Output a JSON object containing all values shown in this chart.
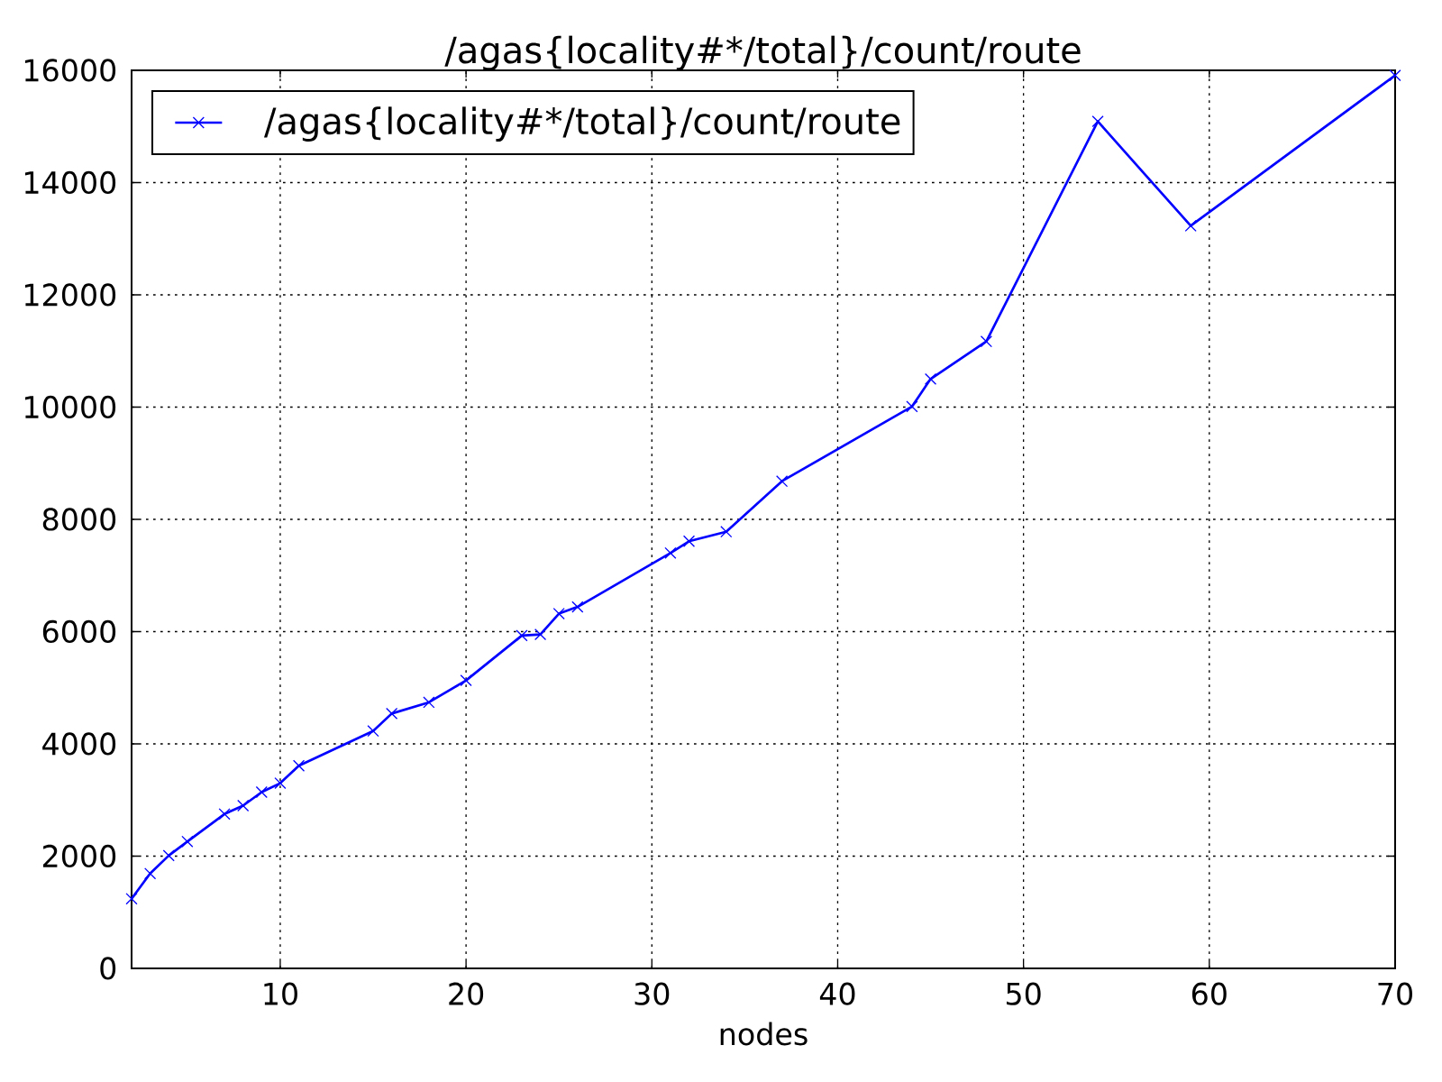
{
  "chart_data": {
    "type": "line",
    "title": "/agas{locality#*/total}/count/route",
    "xlabel": "nodes",
    "x": [
      2,
      3,
      4,
      5,
      7,
      8,
      9,
      10,
      11,
      15,
      16,
      18,
      20,
      23,
      24,
      25,
      26,
      31,
      32,
      34,
      37,
      44,
      45,
      48,
      54,
      59,
      70
    ],
    "series": [
      {
        "name": "/agas{locality#*/total}/count/route",
        "color": "#0000ff",
        "values": [
          1240,
          1690,
          2010,
          2260,
          2750,
          2900,
          3140,
          3300,
          3610,
          4230,
          4540,
          4740,
          5130,
          5930,
          5950,
          6320,
          6440,
          7400,
          7610,
          7780,
          8680,
          10010,
          10500,
          11170,
          15090,
          13230,
          15910
        ]
      }
    ],
    "xlim": [
      2,
      70
    ],
    "ylim": [
      0,
      16000
    ],
    "xticks": [
      10,
      20,
      30,
      40,
      50,
      60,
      70
    ],
    "yticks": [
      0,
      2000,
      4000,
      6000,
      8000,
      10000,
      12000,
      14000,
      16000
    ],
    "grid": true,
    "legend": "top left",
    "marker": "cross",
    "line_style": "solid"
  }
}
